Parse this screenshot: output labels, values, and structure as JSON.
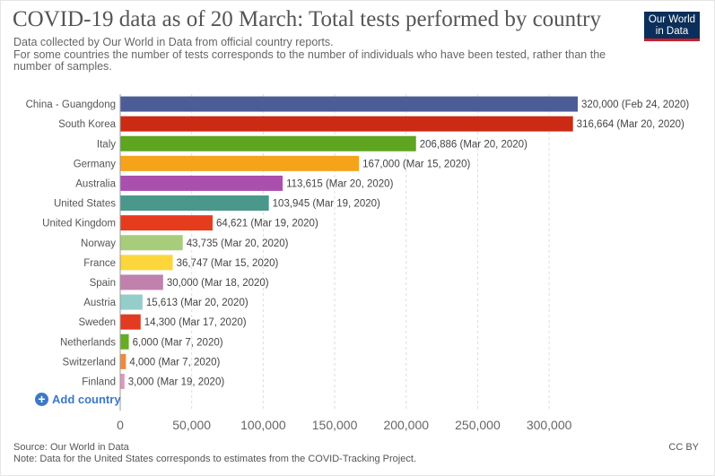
{
  "header": {
    "title": "COVID-19 data as of 20 March: Total tests performed by country",
    "subtitle_line1": "Data collected by Our World in Data from official country reports.",
    "subtitle_line2": "For some countries the number of tests corresponds to the number of individuals who have been tested, rather than the number of samples."
  },
  "logo": {
    "line1": "Our World",
    "line2": "in Data"
  },
  "controls": {
    "add_country_label": "Add country"
  },
  "footer": {
    "source": "Source: Our World in Data",
    "note": "Note: Data for the United States corresponds to estimates from the COVID-Tracking Project.",
    "license": "CC BY"
  },
  "chart_data": {
    "type": "bar",
    "orientation": "horizontal",
    "title": "COVID-19 data as of 20 March: Total tests performed by country",
    "xlim": [
      0,
      320000
    ],
    "x_ticks": [
      0,
      50000,
      100000,
      150000,
      200000,
      250000,
      300000
    ],
    "x_tick_labels": [
      "0",
      "50,000",
      "100,000",
      "150,000",
      "200,000",
      "250,000",
      "300,000"
    ],
    "grid": "vertical dashed",
    "bars": [
      {
        "category": "China - Guangdong",
        "value": 320000,
        "label": "320,000 (Feb 24, 2020)",
        "color": "#4c5c96"
      },
      {
        "category": "South Korea",
        "value": 316664,
        "label": "316,664 (Mar 20, 2020)",
        "color": "#cc2a14"
      },
      {
        "category": "Italy",
        "value": 206886,
        "label": "206,886 (Mar 20, 2020)",
        "color": "#5ea520"
      },
      {
        "category": "Germany",
        "value": 167000,
        "label": "167,000 (Mar 15, 2020)",
        "color": "#f5a31a"
      },
      {
        "category": "Australia",
        "value": 113615,
        "label": "113,615 (Mar 20, 2020)",
        "color": "#ab4fae"
      },
      {
        "category": "United States",
        "value": 103945,
        "label": "103,945 (Mar 19, 2020)",
        "color": "#4a978c"
      },
      {
        "category": "United Kingdom",
        "value": 64621,
        "label": "64,621 (Mar 19, 2020)",
        "color": "#e63c1e"
      },
      {
        "category": "Norway",
        "value": 43735,
        "label": "43,735 (Mar 20, 2020)",
        "color": "#a8cd7a"
      },
      {
        "category": "France",
        "value": 36747,
        "label": "36,747 (Mar 15, 2020)",
        "color": "#fcd63a"
      },
      {
        "category": "Spain",
        "value": 30000,
        "label": "30,000 (Mar 18, 2020)",
        "color": "#c081ad"
      },
      {
        "category": "Austria",
        "value": 15613,
        "label": "15,613 (Mar 20, 2020)",
        "color": "#95cdcb"
      },
      {
        "category": "Sweden",
        "value": 14300,
        "label": "14,300 (Mar 17, 2020)",
        "color": "#e33b22"
      },
      {
        "category": "Netherlands",
        "value": 6000,
        "label": "6,000 (Mar 7, 2020)",
        "color": "#66ad26"
      },
      {
        "category": "Switzerland",
        "value": 4000,
        "label": "4,000 (Mar 7, 2020)",
        "color": "#f08a3a"
      },
      {
        "category": "Finland",
        "value": 3000,
        "label": "3,000 (Mar 19, 2020)",
        "color": "#d89ab8"
      }
    ]
  }
}
